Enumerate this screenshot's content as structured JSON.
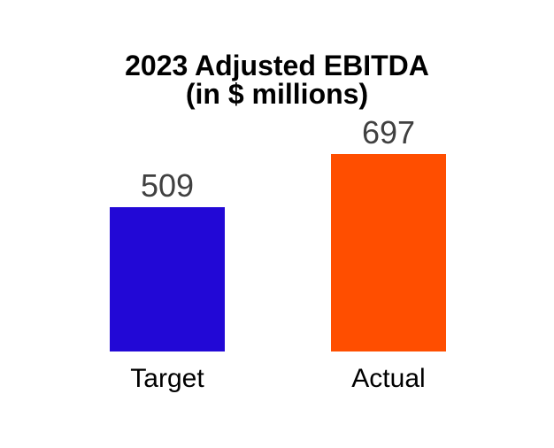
{
  "title": {
    "line1": "2023 Adjusted EBITDA",
    "line2": "(in $ millions)"
  },
  "chart_data": {
    "type": "bar",
    "title": "2023 Adjusted EBITDA (in $ millions)",
    "categories": [
      "Target",
      "Actual"
    ],
    "values": [
      509,
      697
    ],
    "series_colors": [
      "#2208D6",
      "#FF4E00"
    ],
    "value_label_color": "#404040",
    "category_label_color": "#000000",
    "title_color": "#000000",
    "background_color": "#FFFFFF",
    "xlabel": "",
    "ylabel": "",
    "ylim": [
      0,
      780
    ],
    "grid": false,
    "axes_visible": false,
    "legend": "none",
    "value_labels_position": "above-bars"
  }
}
